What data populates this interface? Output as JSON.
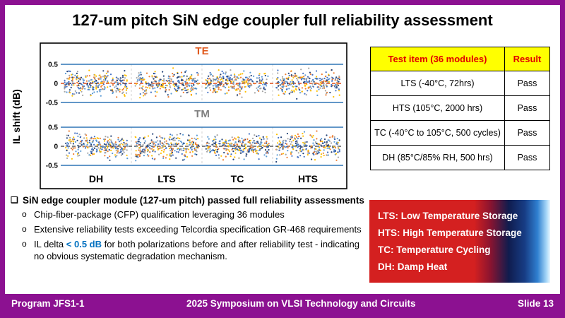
{
  "slide": {
    "title": "127-um pitch SiN edge coupler full reliability assessment",
    "footer": {
      "program": "Program JFS1-1",
      "conference": "2025 Symposium on VLSI Technology and Circuits",
      "slide_number": "Slide 13"
    }
  },
  "colors": {
    "accent_purple": "#8C1191",
    "table_header_bg": "#FFFF00",
    "table_header_text": "#E00000",
    "legend_red": "#D42020",
    "highlight_blue": "#0070C0"
  },
  "chart_data": {
    "type": "scatter",
    "ylabel": "IL shift (dB)",
    "categories": [
      "DH",
      "LTS",
      "TC",
      "HTS"
    ],
    "panels": [
      {
        "label": "TE",
        "label_color": "#E05A1E",
        "zero_line_color": "#E04A16",
        "yticks": [
          "0.5",
          "0",
          "-0.5"
        ]
      },
      {
        "label": "TM",
        "label_color": "#7F7F7F",
        "zero_line_color": "#595959",
        "yticks": [
          "0.5",
          "0",
          "-0.5"
        ]
      }
    ],
    "band_line_values": [
      0.5,
      -0.5
    ],
    "band_line_color": "#2E75B6",
    "point_colors": [
      "#4472C4",
      "#ED7D31",
      "#A5A5A5",
      "#FFC000",
      "#5B9BD5",
      "#264478"
    ],
    "points_per_group": 260,
    "ylim_per_panel": [
      -0.7,
      0.7
    ],
    "grid": "vertical dashed separators between test groups, dashed zero line per panel",
    "distribution_note": "IL shift of 36 modules clusters densely around 0 dB, all points within ±0.45 dB (< 0.5 dB) for both TE and TM polarizations across DH, LTS, TC and HTS tests"
  },
  "table": {
    "headers": [
      "Test item (36 modules)",
      "Result"
    ],
    "rows": [
      {
        "item": "LTS (-40°C, 72hrs)",
        "result": "Pass"
      },
      {
        "item": "HTS (105°C, 2000 hrs)",
        "result": "Pass"
      },
      {
        "item": "TC (-40°C to 105°C, 500 cycles)",
        "result": "Pass"
      },
      {
        "item": "DH (85°C/85% RH, 500 hrs)",
        "result": "Pass"
      }
    ]
  },
  "legend_box": {
    "lines": [
      "LTS: Low Temperature Storage",
      "HTS: High Temperature Storage",
      "TC: Temperature Cycling",
      "DH: Damp Heat"
    ]
  },
  "bullets": {
    "main_marker": "❑",
    "sub_marker": "o",
    "main": "SiN edge coupler module (127-um pitch) passed full reliability assessments",
    "subs": [
      {
        "pre": "Chip-fiber-package (CFP) qualification leveraging 36 modules",
        "highlight": "",
        "post": ""
      },
      {
        "pre": "Extensive reliability tests exceeding Telcordia specification GR-468 requirements",
        "highlight": "",
        "post": ""
      },
      {
        "pre": "IL delta ",
        "highlight": "< 0.5 dB",
        "post": " for both polarizations before and after reliability test - indicating no obvious systematic degradation mechanism."
      }
    ]
  }
}
